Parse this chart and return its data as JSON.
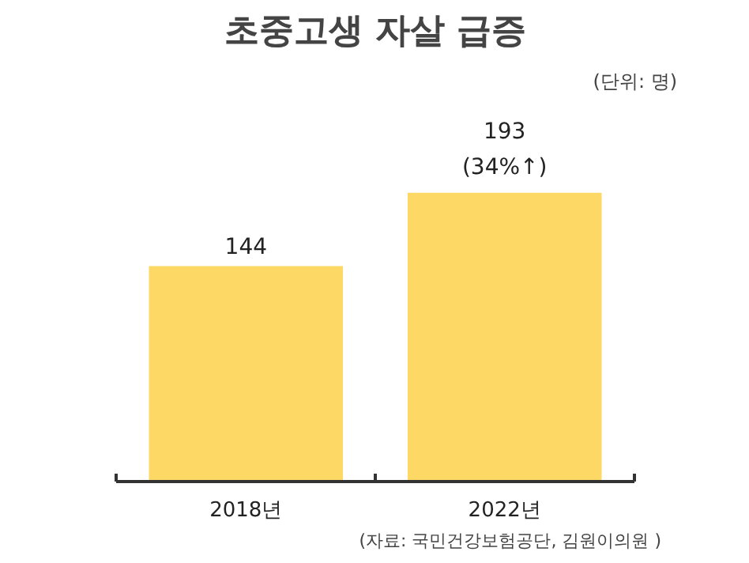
{
  "chart_data": {
    "type": "bar",
    "title": "초중고생 자살 급증",
    "subtitle": "(단위: 명)",
    "categories": [
      "2018년",
      "2022년"
    ],
    "values": [
      144,
      193
    ],
    "color": "#fdd865",
    "value_labels": [
      "144",
      "193\n(34%↑)"
    ],
    "annotations": [
      "(자료: 국민건강보험공단, 김원이의원 )"
    ],
    "grid": false
  }
}
